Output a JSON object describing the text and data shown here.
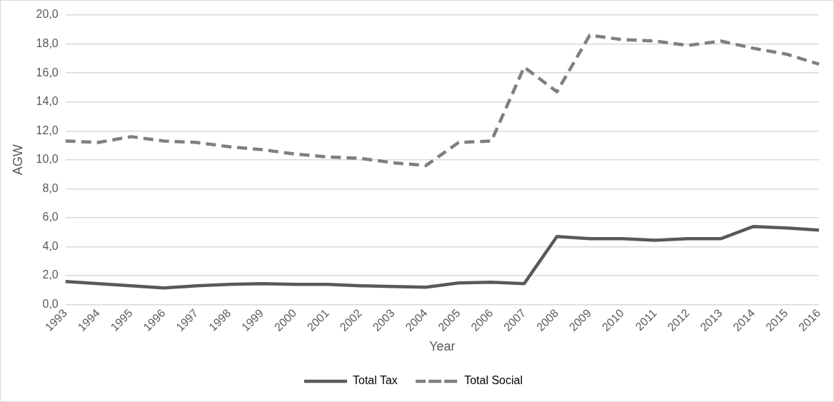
{
  "chart_data": {
    "type": "line",
    "xlabel": "Year",
    "ylabel": "AGW",
    "categories": [
      "1993",
      "1994",
      "1995",
      "1996",
      "1997",
      "1998",
      "1999",
      "2000",
      "2001",
      "2002",
      "2003",
      "2004",
      "2005",
      "2006",
      "2007",
      "2008",
      "2009",
      "2010",
      "2011",
      "2012",
      "2013",
      "2014",
      "2015",
      "2016"
    ],
    "series": [
      {
        "name": "Total Tax",
        "color": "#595959",
        "line_style": "solid",
        "values": [
          1.6,
          1.45,
          1.3,
          1.15,
          1.3,
          1.4,
          1.45,
          1.4,
          1.4,
          1.3,
          1.25,
          1.2,
          1.5,
          1.55,
          1.45,
          4.7,
          4.55,
          4.55,
          4.45,
          4.55,
          4.55,
          5.4,
          5.3,
          5.15
        ]
      },
      {
        "name": "Total Social",
        "color": "#7f7f7f",
        "line_style": "dashed",
        "values": [
          11.3,
          11.2,
          11.6,
          11.3,
          11.2,
          10.9,
          10.7,
          10.4,
          10.2,
          10.1,
          9.8,
          9.6,
          11.2,
          11.3,
          16.4,
          14.7,
          18.6,
          18.3,
          18.2,
          17.9,
          18.2,
          17.7,
          17.3,
          16.6
        ]
      }
    ],
    "ylim": [
      0,
      20
    ],
    "yticks": [
      {
        "value": 0,
        "label": "0,0"
      },
      {
        "value": 2,
        "label": "2,0"
      },
      {
        "value": 4,
        "label": "4,0"
      },
      {
        "value": 6,
        "label": "6,0"
      },
      {
        "value": 8,
        "label": "8,0"
      },
      {
        "value": 10,
        "label": "10,0"
      },
      {
        "value": 12,
        "label": "12,0"
      },
      {
        "value": 14,
        "label": "14,0"
      },
      {
        "value": 16,
        "label": "16,0"
      },
      {
        "value": 18,
        "label": "18,0"
      },
      {
        "value": 20,
        "label": "20,0"
      }
    ],
    "grid": "y",
    "legend": "bottom",
    "marker": "none"
  }
}
